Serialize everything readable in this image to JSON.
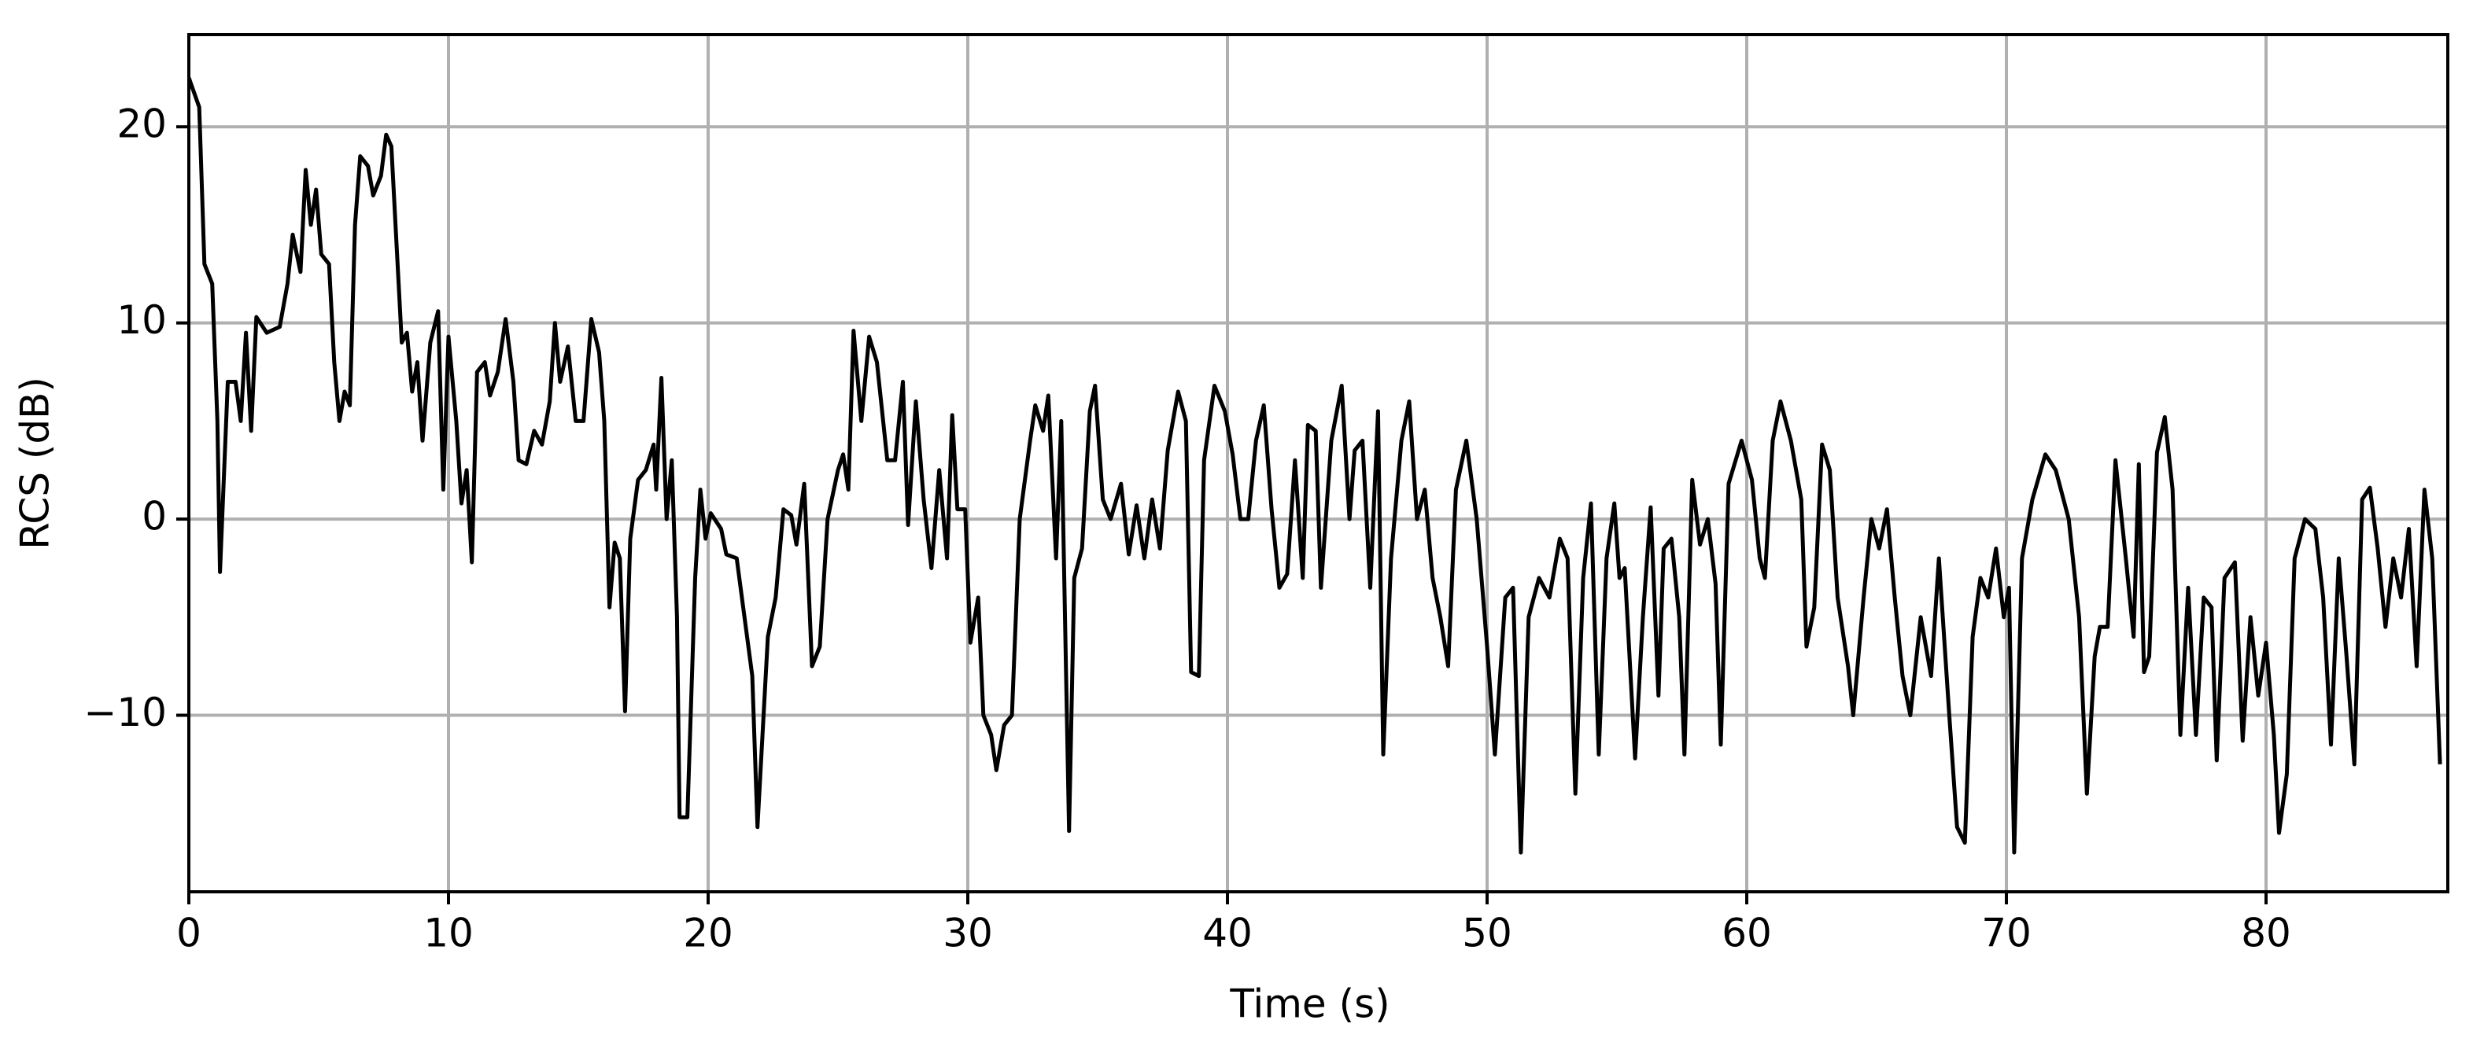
{
  "chart_data": {
    "type": "line",
    "xlabel": "Time (s)",
    "ylabel": "RCS (dB)",
    "xlim": [
      0,
      87
    ],
    "ylim": [
      -19,
      24.7
    ],
    "xticks": [
      0,
      10,
      20,
      30,
      40,
      50,
      60,
      70,
      80
    ],
    "yticks": [
      {
        "value": -10,
        "label": "−10"
      },
      0,
      10,
      20
    ],
    "grid": true,
    "color": "#000000",
    "x": [
      0,
      0.4,
      0.6,
      0.9,
      1.1,
      1.2,
      1.5,
      1.8,
      2.0,
      2.2,
      2.4,
      2.6,
      3.0,
      3.5,
      3.8,
      4.0,
      4.3,
      4.5,
      4.7,
      4.9,
      5.1,
      5.4,
      5.6,
      5.8,
      6.0,
      6.2,
      6.4,
      6.6,
      6.9,
      7.1,
      7.4,
      7.6,
      7.8,
      8.0,
      8.2,
      8.4,
      8.6,
      8.8,
      9.0,
      9.3,
      9.6,
      9.8,
      10.0,
      10.3,
      10.5,
      10.7,
      10.9,
      11.1,
      11.4,
      11.6,
      11.9,
      12.2,
      12.5,
      12.7,
      13.0,
      13.3,
      13.6,
      13.9,
      14.1,
      14.3,
      14.6,
      14.9,
      15.2,
      15.5,
      15.8,
      16.0,
      16.2,
      16.4,
      16.6,
      16.8,
      17.0,
      17.3,
      17.6,
      17.9,
      18.0,
      18.2,
      18.4,
      18.6,
      18.8,
      18.9,
      19.2,
      19.5,
      19.7,
      19.9,
      20.1,
      20.5,
      20.7,
      21.1,
      21.4,
      21.7,
      21.9,
      22.3,
      22.6,
      22.9,
      23.2,
      23.4,
      23.7,
      24.0,
      24.3,
      24.6,
      25.0,
      25.2,
      25.4,
      25.6,
      25.9,
      26.2,
      26.5,
      26.9,
      27.2,
      27.5,
      27.7,
      28.0,
      28.3,
      28.6,
      28.9,
      29.2,
      29.4,
      29.6,
      29.9,
      30.1,
      30.4,
      30.6,
      30.9,
      31.1,
      31.4,
      31.7,
      32.0,
      32.4,
      32.6,
      32.9,
      33.1,
      33.4,
      33.6,
      33.9,
      34.1,
      34.4,
      34.7,
      34.9,
      35.2,
      35.5,
      35.9,
      36.2,
      36.5,
      36.8,
      37.1,
      37.4,
      37.7,
      38.1,
      38.4,
      38.6,
      38.9,
      39.1,
      39.5,
      39.9,
      40.2,
      40.5,
      40.8,
      41.1,
      41.4,
      41.7,
      42.0,
      42.3,
      42.6,
      42.9,
      43.1,
      43.4,
      43.6,
      44.0,
      44.4,
      44.7,
      44.9,
      45.2,
      45.5,
      45.8,
      46.0,
      46.3,
      46.7,
      47.0,
      47.3,
      47.6,
      47.9,
      48.2,
      48.5,
      48.8,
      49.2,
      49.6,
      50.0,
      50.3,
      50.7,
      51.0,
      51.3,
      51.6,
      52.0,
      52.4,
      52.8,
      53.1,
      53.4,
      53.7,
      54.0,
      54.3,
      54.6,
      54.9,
      55.1,
      55.3,
      55.7,
      56.0,
      56.3,
      56.6,
      56.8,
      57.1,
      57.4,
      57.6,
      57.9,
      58.2,
      58.5,
      58.8,
      59.0,
      59.3,
      59.8,
      60.2,
      60.5,
      60.7,
      61.0,
      61.3,
      61.7,
      62.1,
      62.3,
      62.6,
      62.9,
      63.2,
      63.5,
      63.9,
      64.1,
      64.5,
      64.8,
      65.1,
      65.4,
      65.7,
      66.0,
      66.3,
      66.7,
      67.1,
      67.4,
      67.8,
      68.1,
      68.4,
      68.7,
      69.0,
      69.3,
      69.6,
      69.9,
      70.1,
      70.3,
      70.6,
      71.0,
      71.5,
      71.9,
      72.4,
      72.8,
      73.1,
      73.4,
      73.6,
      73.9,
      74.2,
      74.6,
      74.9,
      75.1,
      75.3,
      75.5,
      75.8,
      76.1,
      76.4,
      76.7,
      77.0,
      77.3,
      77.6,
      77.9,
      78.1,
      78.4,
      78.8,
      79.1,
      79.4,
      79.7,
      80.0,
      80.3,
      80.5,
      80.8,
      81.1,
      81.5,
      81.9,
      82.2,
      82.5,
      82.8,
      83.1,
      83.4,
      83.7,
      84.0,
      84.3,
      84.6,
      84.9,
      85.2,
      85.5,
      85.8,
      86.1,
      86.4,
      86.7
    ],
    "values": [
      22.5,
      21,
      13,
      12,
      5,
      -2.7,
      7,
      7,
      5,
      9.5,
      4.5,
      10.3,
      9.5,
      9.8,
      12,
      14.5,
      12.6,
      17.8,
      15,
      16.8,
      13.5,
      13,
      8,
      5,
      6.5,
      5.8,
      15,
      18.5,
      18,
      16.5,
      17.5,
      19.6,
      19,
      14,
      9,
      9.5,
      6.5,
      8,
      4,
      9,
      10.6,
      1.5,
      9.3,
      5,
      0.8,
      2.5,
      -2.2,
      7.5,
      8,
      6.3,
      7.5,
      10.2,
      7,
      3,
      2.8,
      4.5,
      3.8,
      6,
      10,
      7,
      8.8,
      5,
      5,
      10.2,
      8.5,
      5,
      -4.5,
      -1.2,
      -2,
      -9.8,
      -1,
      2,
      2.5,
      3.8,
      1.5,
      7.2,
      0,
      3,
      -5,
      -15.2,
      -15.2,
      -3,
      1.5,
      -1,
      0.3,
      -0.5,
      -1.8,
      -2,
      -5,
      -8,
      -15.7,
      -6,
      -4,
      0.5,
      0.2,
      -1.3,
      1.8,
      -7.5,
      -6.5,
      0,
      2.5,
      3.3,
      1.5,
      9.6,
      5,
      9.3,
      8,
      3,
      3,
      7,
      -0.3,
      6,
      1,
      -2.5,
      2.5,
      -2,
      5.3,
      0.5,
      0.5,
      -6.3,
      -4,
      -10,
      -11,
      -12.8,
      -10.5,
      -10,
      0,
      4,
      5.8,
      4.5,
      6.3,
      -2,
      5,
      -15.9,
      -3,
      -1.5,
      5.5,
      6.8,
      1,
      0,
      1.8,
      -1.8,
      0.7,
      -2,
      1,
      -1.5,
      3.5,
      6.5,
      5,
      -7.8,
      -8,
      3,
      6.8,
      5.5,
      3.3,
      0,
      0,
      4,
      5.8,
      0.5,
      -3.5,
      -2.8,
      3,
      -3,
      4.8,
      4.5,
      -3.5,
      4,
      6.8,
      0,
      3.5,
      4,
      -3.5,
      5.5,
      -12,
      -2,
      4,
      6,
      0,
      1.5,
      -3,
      -5,
      -7.5,
      1.5,
      4,
      0,
      -6.5,
      -12,
      -4,
      -3.5,
      -17,
      -5,
      -3,
      -4,
      -1,
      -2,
      -14,
      -3,
      0.8,
      -12,
      -2,
      0.8,
      -3,
      -2.5,
      -12.2,
      -5,
      0.6,
      -9,
      -1.5,
      -1,
      -5,
      -12,
      2,
      -1.3,
      0,
      -3.3,
      -11.5,
      1.8,
      4,
      2,
      -2,
      -3,
      4,
      6,
      4,
      1,
      -6.5,
      -4.5,
      3.8,
      2.5,
      -4,
      -7.5,
      -10,
      -4,
      0,
      -1.5,
      0.5,
      -4,
      -8,
      -10,
      -5,
      -8,
      -2,
      -10,
      -15.7,
      -16.5,
      -6,
      -3,
      -4,
      -1.5,
      -5,
      -3.5,
      -17,
      -2,
      1,
      3.3,
      2.5,
      0,
      -5,
      -14,
      -7,
      -5.5,
      -5.5,
      3,
      -2,
      -6,
      2.8,
      -7.8,
      -7,
      3.4,
      5.2,
      1.5,
      -11,
      -3.5,
      -11,
      -4,
      -4.5,
      -12.3,
      -3,
      -2.2,
      -11.3,
      -5,
      -9,
      -6.3,
      -11,
      -16,
      -13,
      -2,
      0,
      -0.5,
      -4,
      -11.5,
      -2,
      -7,
      -12.5,
      1,
      1.6,
      -1.5,
      -5.5,
      -2,
      -4,
      -0.5,
      -7.5,
      1.5,
      -2,
      -12.5
    ]
  }
}
